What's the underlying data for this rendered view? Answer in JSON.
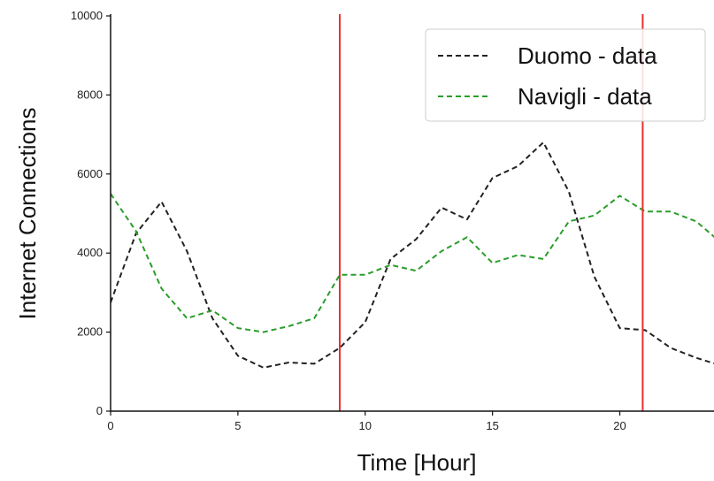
{
  "chart_data": {
    "type": "line",
    "title": "",
    "xlabel": "Time [Hour]",
    "ylabel": "Internet Connections",
    "xlim": [
      0,
      23.7
    ],
    "ylim": [
      0,
      10000
    ],
    "x_ticks": [
      0,
      5,
      10,
      15,
      20
    ],
    "y_ticks": [
      0,
      2000,
      4000,
      6000,
      8000,
      10000
    ],
    "grid": false,
    "legend_position": "top-right",
    "x": [
      0,
      1,
      2,
      3,
      4,
      5,
      6,
      7,
      8,
      9,
      10,
      11,
      12,
      13,
      14,
      15,
      16,
      17,
      18,
      19,
      20,
      21,
      22,
      23,
      24
    ],
    "series": [
      {
        "name": "Duomo - data",
        "color": "#222222",
        "dash": "dashed",
        "values": [
          2750,
          4500,
          5300,
          4050,
          2350,
          1400,
          1100,
          1230,
          1200,
          1600,
          2250,
          3850,
          4350,
          5150,
          4850,
          5900,
          6200,
          6800,
          5550,
          3400,
          2100,
          2050,
          1600,
          1350,
          1150
        ]
      },
      {
        "name": "Navigli - data",
        "color": "#2a9d2a",
        "dash": "dashed",
        "values": [
          5500,
          4550,
          3100,
          2350,
          2550,
          2100,
          2000,
          2150,
          2350,
          3450,
          3450,
          3700,
          3550,
          4050,
          4400,
          3750,
          3950,
          3850,
          4800,
          4950,
          5450,
          5050,
          5050,
          4800,
          4250
        ]
      }
    ],
    "vertical_lines": [
      {
        "x": 9,
        "color": "#e8312f"
      },
      {
        "x": 20.9,
        "color": "#e8312f"
      }
    ]
  }
}
